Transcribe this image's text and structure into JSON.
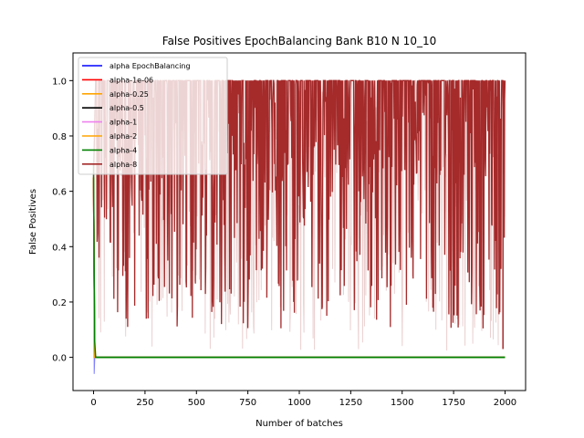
{
  "chart_data": {
    "type": "line",
    "title": "False Positives EpochBalancing Bank B10 N 10_10",
    "xlabel": "Number of batches",
    "ylabel": "False Positives",
    "xlim": [
      -100,
      2100
    ],
    "ylim": [
      -0.12,
      1.1
    ],
    "x_ticks": [
      0,
      250,
      500,
      750,
      1000,
      1250,
      1500,
      1750,
      2000
    ],
    "y_ticks": [
      0.0,
      0.2,
      0.4,
      0.6,
      0.8,
      1.0
    ],
    "y_tick_labels": [
      "0.0",
      "0.2",
      "0.4",
      "0.6",
      "0.8",
      "1.0"
    ],
    "legend_position": "top-left",
    "grid": false,
    "series": [
      {
        "name": "alpha EpochBalancing",
        "color": "#0000ff",
        "x": [
          0,
          3,
          6,
          2000
        ],
        "y": [
          0.7,
          -0.06,
          0.0,
          0.0
        ]
      },
      {
        "name": "alpha-1e-06",
        "color": "#ff0000",
        "x": [
          0,
          5,
          2000
        ],
        "y": [
          0.65,
          0.0,
          0.0
        ]
      },
      {
        "name": "alpha-0.25",
        "color": "#ffa500",
        "x": [
          0,
          5,
          2000
        ],
        "y": [
          0.65,
          0.0,
          0.0
        ]
      },
      {
        "name": "alpha-0.5",
        "color": "#000000",
        "x": [
          0,
          5,
          2000
        ],
        "y": [
          0.65,
          0.0,
          0.0
        ]
      },
      {
        "name": "alpha-1",
        "color": "#ee82ee",
        "x": [
          0,
          5,
          2000
        ],
        "y": [
          0.65,
          0.0,
          0.0
        ]
      },
      {
        "name": "alpha-2",
        "color": "#ffa500",
        "x": [
          0,
          5,
          2000
        ],
        "y": [
          0.65,
          0.0,
          0.0
        ]
      },
      {
        "name": "alpha-4",
        "color": "#008000",
        "x": [
          0,
          5,
          10,
          2000
        ],
        "y": [
          0.7,
          0.06,
          0.0,
          0.0
        ]
      },
      {
        "name": "alpha-8",
        "color": "#a52a2a",
        "x_range": [
          0,
          2000
        ],
        "y_range": [
          0.0,
          1.0
        ],
        "noisy": true
      }
    ]
  }
}
